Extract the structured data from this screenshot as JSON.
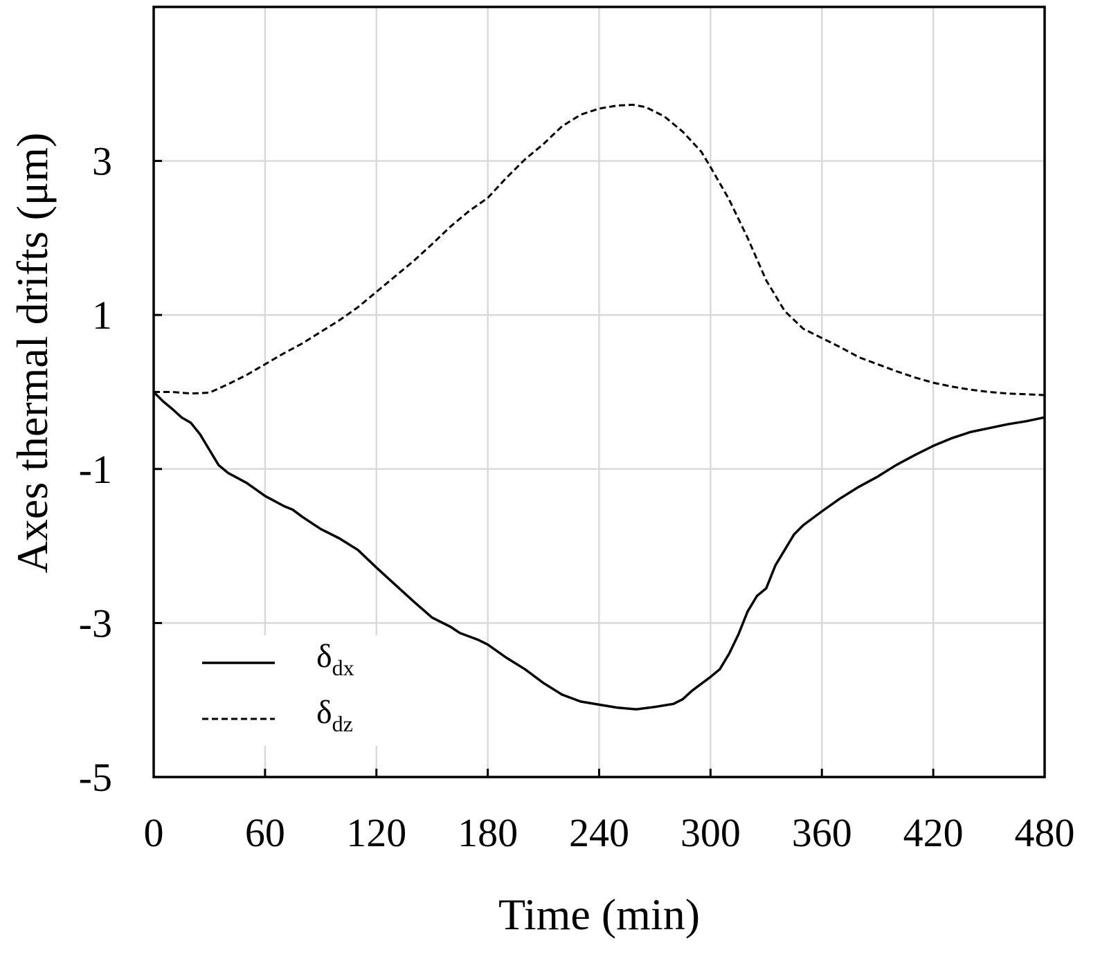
{
  "chart_data": {
    "type": "line",
    "xlabel": "Time (min)",
    "ylabel": "Axes thermal drifts (μm)",
    "xlim": [
      0,
      480
    ],
    "ylim": [
      -5,
      5
    ],
    "xticks": [
      0,
      60,
      120,
      180,
      240,
      300,
      360,
      420,
      480
    ],
    "xtick_labels": [
      "0",
      "60",
      "120",
      "180",
      "240",
      "300",
      "360",
      "420",
      "480"
    ],
    "yticks": [
      -5,
      -3,
      -1,
      1,
      3
    ],
    "ytick_labels": [
      "-5",
      "-3",
      "-1",
      "1",
      "3"
    ],
    "grid": true,
    "legend_position": "bottom-left",
    "series": [
      {
        "name": "δdx",
        "symbol": "δ",
        "subscript": "dx",
        "style": "solid",
        "color": "#000000",
        "points": [
          [
            0,
            0.0
          ],
          [
            5,
            -0.12
          ],
          [
            10,
            -0.22
          ],
          [
            15,
            -0.33
          ],
          [
            20,
            -0.4
          ],
          [
            25,
            -0.55
          ],
          [
            30,
            -0.75
          ],
          [
            35,
            -0.95
          ],
          [
            40,
            -1.05
          ],
          [
            50,
            -1.18
          ],
          [
            60,
            -1.35
          ],
          [
            70,
            -1.48
          ],
          [
            75,
            -1.53
          ],
          [
            80,
            -1.62
          ],
          [
            90,
            -1.78
          ],
          [
            100,
            -1.9
          ],
          [
            110,
            -2.05
          ],
          [
            120,
            -2.28
          ],
          [
            130,
            -2.5
          ],
          [
            140,
            -2.72
          ],
          [
            150,
            -2.93
          ],
          [
            160,
            -3.05
          ],
          [
            165,
            -3.13
          ],
          [
            175,
            -3.22
          ],
          [
            180,
            -3.28
          ],
          [
            190,
            -3.45
          ],
          [
            200,
            -3.6
          ],
          [
            210,
            -3.78
          ],
          [
            220,
            -3.93
          ],
          [
            230,
            -4.02
          ],
          [
            240,
            -4.06
          ],
          [
            250,
            -4.1
          ],
          [
            260,
            -4.12
          ],
          [
            270,
            -4.09
          ],
          [
            280,
            -4.05
          ],
          [
            285,
            -3.99
          ],
          [
            290,
            -3.88
          ],
          [
            300,
            -3.7
          ],
          [
            305,
            -3.6
          ],
          [
            310,
            -3.4
          ],
          [
            315,
            -3.15
          ],
          [
            320,
            -2.85
          ],
          [
            325,
            -2.65
          ],
          [
            330,
            -2.55
          ],
          [
            335,
            -2.25
          ],
          [
            340,
            -2.05
          ],
          [
            345,
            -1.85
          ],
          [
            350,
            -1.73
          ],
          [
            360,
            -1.55
          ],
          [
            370,
            -1.38
          ],
          [
            380,
            -1.23
          ],
          [
            390,
            -1.1
          ],
          [
            400,
            -0.95
          ],
          [
            410,
            -0.82
          ],
          [
            420,
            -0.7
          ],
          [
            430,
            -0.6
          ],
          [
            440,
            -0.52
          ],
          [
            450,
            -0.47
          ],
          [
            460,
            -0.42
          ],
          [
            470,
            -0.38
          ],
          [
            480,
            -0.33
          ]
        ]
      },
      {
        "name": "δdz",
        "symbol": "δ",
        "subscript": "dz",
        "style": "dashed",
        "color": "#000000",
        "points": [
          [
            0,
            0.0
          ],
          [
            10,
            0.0
          ],
          [
            20,
            -0.02
          ],
          [
            30,
            -0.01
          ],
          [
            40,
            0.1
          ],
          [
            50,
            0.22
          ],
          [
            60,
            0.36
          ],
          [
            70,
            0.5
          ],
          [
            80,
            0.63
          ],
          [
            90,
            0.78
          ],
          [
            100,
            0.93
          ],
          [
            110,
            1.1
          ],
          [
            120,
            1.3
          ],
          [
            130,
            1.5
          ],
          [
            140,
            1.7
          ],
          [
            150,
            1.92
          ],
          [
            160,
            2.15
          ],
          [
            170,
            2.35
          ],
          [
            180,
            2.52
          ],
          [
            190,
            2.78
          ],
          [
            200,
            3.02
          ],
          [
            210,
            3.22
          ],
          [
            220,
            3.45
          ],
          [
            230,
            3.6
          ],
          [
            240,
            3.68
          ],
          [
            250,
            3.72
          ],
          [
            258,
            3.73
          ],
          [
            265,
            3.7
          ],
          [
            275,
            3.58
          ],
          [
            285,
            3.38
          ],
          [
            295,
            3.12
          ],
          [
            300,
            2.92
          ],
          [
            310,
            2.5
          ],
          [
            320,
            2.0
          ],
          [
            330,
            1.45
          ],
          [
            340,
            1.05
          ],
          [
            350,
            0.82
          ],
          [
            360,
            0.7
          ],
          [
            370,
            0.58
          ],
          [
            380,
            0.45
          ],
          [
            390,
            0.36
          ],
          [
            400,
            0.27
          ],
          [
            410,
            0.19
          ],
          [
            420,
            0.12
          ],
          [
            430,
            0.07
          ],
          [
            440,
            0.03
          ],
          [
            450,
            0.0
          ],
          [
            460,
            -0.02
          ],
          [
            470,
            -0.03
          ],
          [
            480,
            -0.04
          ]
        ]
      }
    ]
  }
}
